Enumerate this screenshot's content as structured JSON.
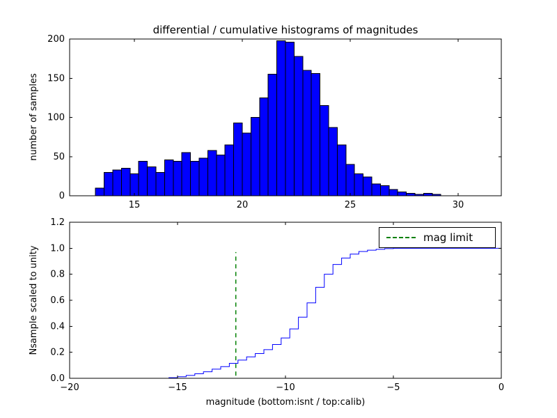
{
  "figure": {
    "title": "differential / cumulative histograms of magnitudes"
  },
  "chart_data": [
    {
      "type": "bar",
      "title": "differential / cumulative histograms of magnitudes",
      "ylabel": "number of samples",
      "xlim": [
        12,
        32
      ],
      "ylim": [
        0,
        200
      ],
      "xticks": [
        15,
        20,
        25,
        30
      ],
      "xtick_labels": [
        "15",
        "20",
        "25",
        "30"
      ],
      "yticks": [
        0,
        50,
        100,
        150,
        200
      ],
      "ytick_labels": [
        "0",
        "50",
        "100",
        "150",
        "200"
      ],
      "bar_color": "#0000ff",
      "edge_color": "#000000",
      "grid": false,
      "bin_start": 13.2,
      "bin_width": 0.4,
      "values": [
        10,
        30,
        33,
        35,
        28,
        44,
        37,
        30,
        46,
        44,
        55,
        44,
        48,
        58,
        52,
        65,
        93,
        80,
        100,
        125,
        155,
        198,
        196,
        178,
        160,
        156,
        115,
        87,
        65,
        40,
        28,
        24,
        15,
        13,
        8,
        5,
        3,
        2,
        3,
        2
      ]
    },
    {
      "type": "line",
      "ylabel": "Nsample scaled to unity",
      "xlabel": "magnitude (bottom:isnt / top:calib)",
      "xlim": [
        -20,
        0
      ],
      "ylim": [
        0,
        1.2
      ],
      "xticks": [
        -20,
        -15,
        -10,
        -5,
        0
      ],
      "xtick_labels": [
        "−20",
        "−15",
        "−10",
        "−5",
        "0"
      ],
      "yticks": [
        0,
        0.2,
        0.4,
        0.6,
        0.8,
        1.0,
        1.2
      ],
      "ytick_labels": [
        "0.0",
        "0.2",
        "0.4",
        "0.6",
        "0.8",
        "1.0",
        "1.2"
      ],
      "line_color": "#0000ff",
      "grid": false,
      "bin_start": -15.4,
      "bin_width": 0.4,
      "cum_levels": [
        0.005,
        0.012,
        0.022,
        0.035,
        0.05,
        0.07,
        0.09,
        0.115,
        0.14,
        0.165,
        0.19,
        0.22,
        0.26,
        0.31,
        0.38,
        0.47,
        0.58,
        0.7,
        0.8,
        0.875,
        0.925,
        0.955,
        0.975,
        0.985,
        0.992,
        0.997
      ],
      "final_level": 1.0,
      "mag_limit": {
        "x": -12.3,
        "y0": 0.02,
        "y1": 0.97,
        "color": "#008000",
        "label": "mag limit"
      },
      "legend_label": "mag limit",
      "legend_position": "upper right"
    }
  ]
}
